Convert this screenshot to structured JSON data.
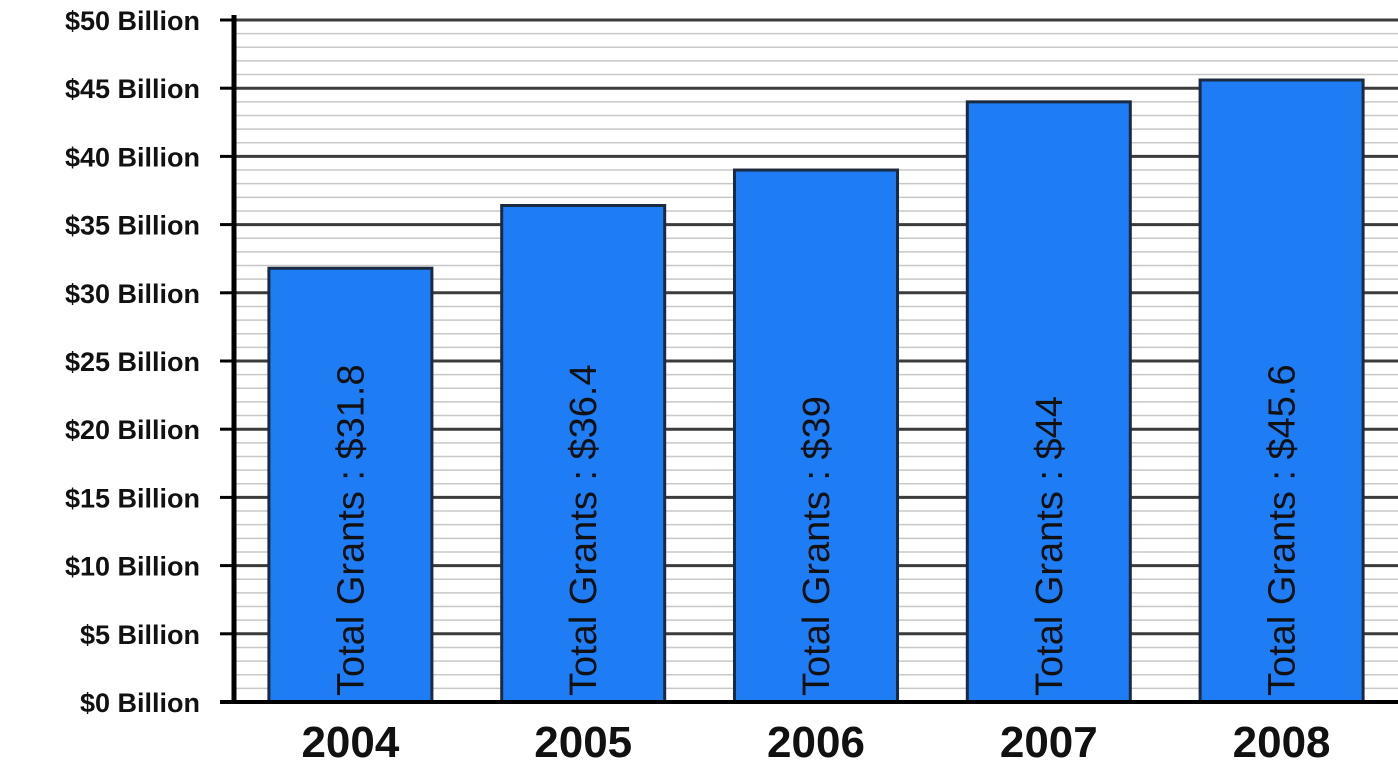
{
  "chart_data": {
    "type": "bar",
    "categories": [
      "2004",
      "2005",
      "2006",
      "2007",
      "2008"
    ],
    "values": [
      31.8,
      36.4,
      39,
      44,
      45.6
    ],
    "bar_labels": [
      "Total Grants : $31.8",
      "Total Grants : $36.4",
      "Total Grants : $39",
      "Total Grants : $44",
      "Total Grants : $45.6"
    ],
    "yticks": [
      0,
      5,
      10,
      15,
      20,
      25,
      30,
      35,
      40,
      45,
      50
    ],
    "ytick_labels": [
      "$0 Billion",
      "$5 Billion",
      "$10 Billion",
      "$15 Billion",
      "$20 Billion",
      "$25 Billion",
      "$30 Billion",
      "$35 Billion",
      "$40 Billion",
      "$45 Billion",
      "$50 Billion"
    ],
    "ylim": [
      0,
      50
    ],
    "grid": true,
    "legend": "none",
    "colors": {
      "bar": "#1e7cf5",
      "bar_border": "#1a2a40",
      "grid_major": "#3c3c3c",
      "grid_minor": "#c8c8c8",
      "axis": "#000000"
    }
  }
}
